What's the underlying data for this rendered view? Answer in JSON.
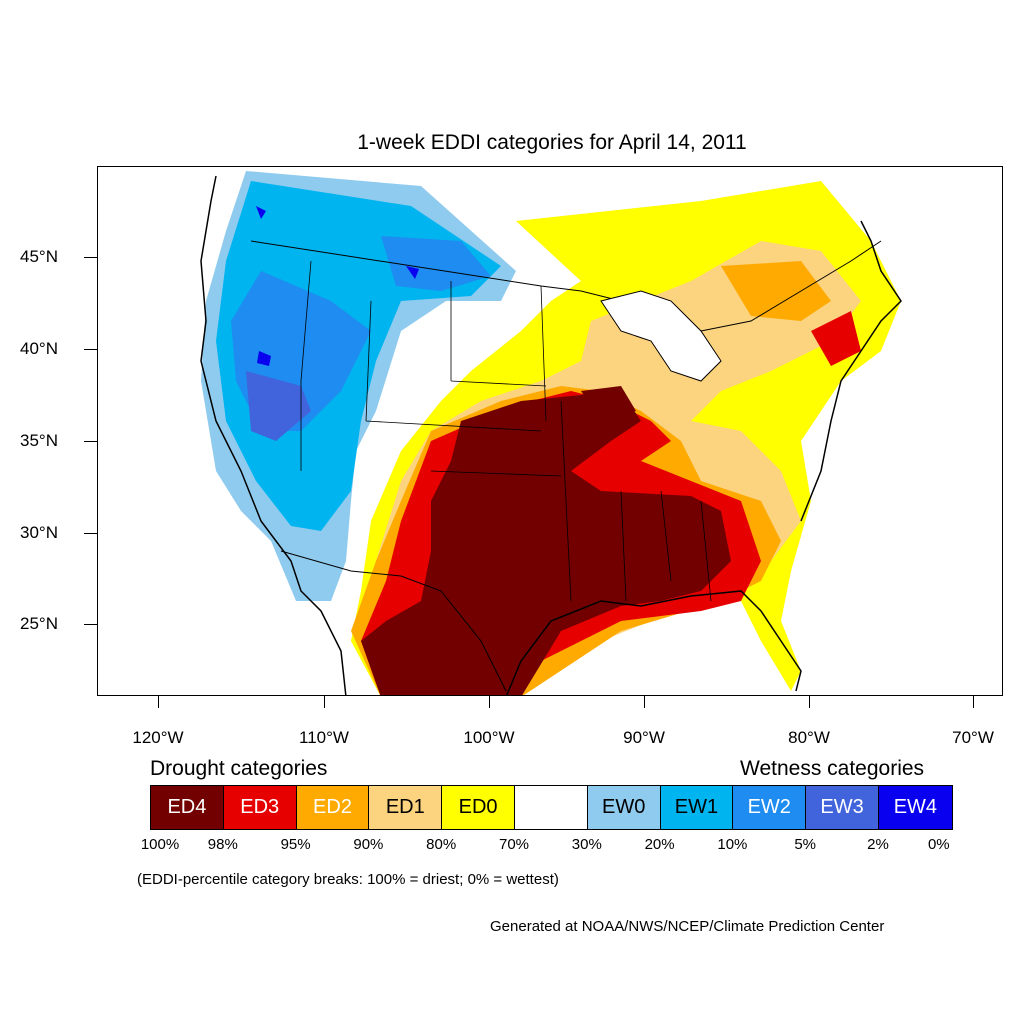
{
  "title": "1-week EDDI categories for April 14, 2011",
  "lat_labels": [
    "45°N",
    "40°N",
    "35°N",
    "30°N",
    "25°N"
  ],
  "lon_labels": [
    "120°W",
    "110°W",
    "100°W",
    "90°W",
    "80°W",
    "70°W"
  ],
  "legend": {
    "drought_heading": "Drought categories",
    "wetness_heading": "Wetness categories",
    "categories": [
      {
        "label": "ED4",
        "color": "#730000",
        "text_color": "#ffffff"
      },
      {
        "label": "ED3",
        "color": "#e60000",
        "text_color": "#ffffff"
      },
      {
        "label": "ED2",
        "color": "#ffaa00",
        "text_color": "#ffffff"
      },
      {
        "label": "ED1",
        "color": "#fcd37f",
        "text_color": "#000000"
      },
      {
        "label": "ED0",
        "color": "#ffff00",
        "text_color": "#000000"
      },
      {
        "label": "",
        "color": "#ffffff",
        "text_color": "#000000"
      },
      {
        "label": "EW0",
        "color": "#8fcbee",
        "text_color": "#000000"
      },
      {
        "label": "EW1",
        "color": "#00b4f0",
        "text_color": "#000000"
      },
      {
        "label": "EW2",
        "color": "#1e8cf0",
        "text_color": "#ffffff"
      },
      {
        "label": "EW3",
        "color": "#4164dc",
        "text_color": "#ffffff"
      },
      {
        "label": "EW4",
        "color": "#0a00f0",
        "text_color": "#ffffff"
      }
    ],
    "breaks": [
      "100%",
      "98%",
      "95%",
      "90%",
      "80%",
      "70%",
      "30%",
      "20%",
      "10%",
      "5%",
      "2%",
      "0%"
    ]
  },
  "note": "(EDDI-percentile category breaks: 100% = driest; 0% = wettest)",
  "credit": "Generated at NOAA/NWS/NCEP/Climate Prediction Center",
  "colors": {
    "ED4": "#730000",
    "ED3": "#e60000",
    "ED2": "#ffaa00",
    "ED1": "#fcd37f",
    "ED0": "#ffff00",
    "EW0": "#8fcbee",
    "EW1": "#00b4f0",
    "EW2": "#1e8cf0",
    "EW3": "#4164dc",
    "EW4": "#0a00f0"
  }
}
